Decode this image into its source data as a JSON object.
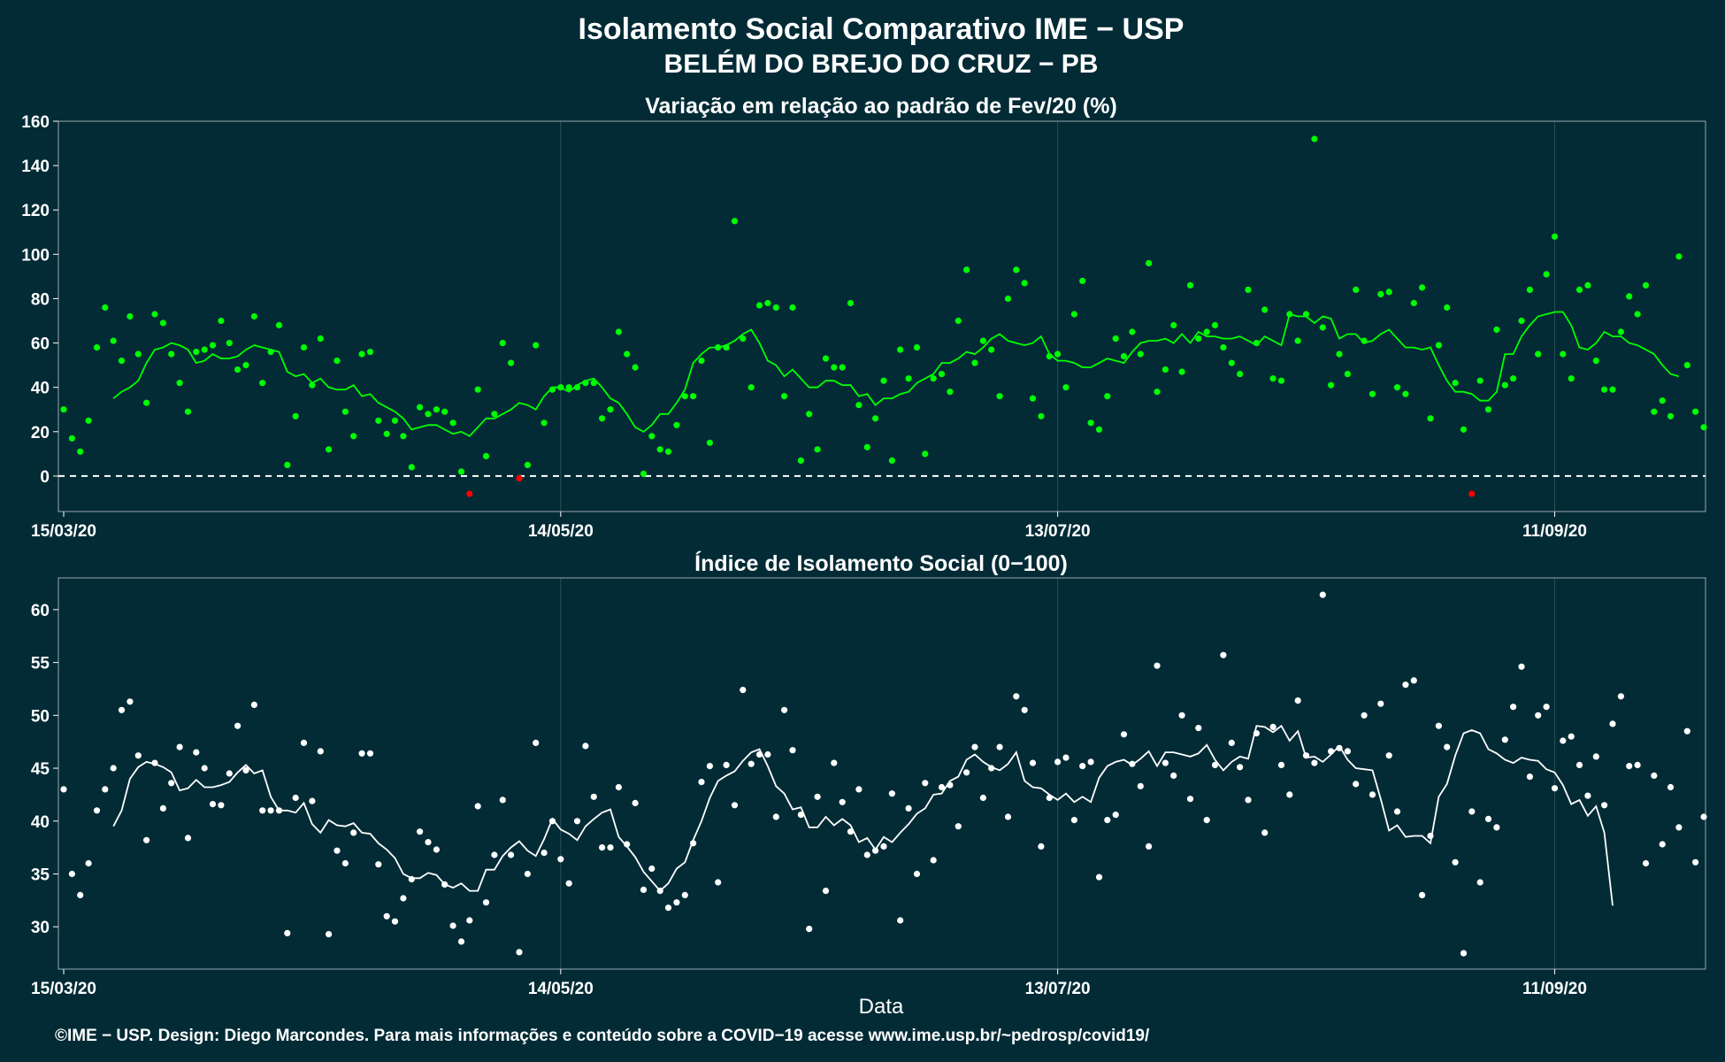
{
  "header": {
    "title": "Isolamento Social Comparativo IME − USP",
    "subtitle": "BELÉM DO BREJO DO CRUZ − PB"
  },
  "xlabel": "Data",
  "footer": "©IME − USP. Design: Diego Marcondes. Para mais informações e conteúdo sobre a COVID−19 acesse www.ime.usp.br/~pedrosp/covid19/",
  "colors": {
    "background": "#022b36",
    "points_positive": "#00ff00",
    "points_negative": "#ff0000",
    "line_top": "#00ff00",
    "line_bottom": "#ffffff",
    "points_bottom": "#ffffff",
    "grid": "#2b4f58"
  },
  "chart_data": [
    {
      "type": "scatter",
      "title": "Variação em relação ao padrão de Fev/20 (%)",
      "x_start": "15/03/20",
      "x_tick_labels": [
        "15/03/20",
        "14/05/20",
        "13/07/20",
        "11/09/20"
      ],
      "x_ticks_day_index": [
        0,
        60,
        120,
        180
      ],
      "ylim": [
        -16,
        160
      ],
      "y_ticks": [
        0,
        20,
        40,
        60,
        80,
        100,
        120,
        140,
        160
      ],
      "reference_line": 0,
      "grid": true,
      "series": [
        {
          "values": [
            30,
            17,
            11,
            25,
            58,
            76,
            61,
            52,
            72,
            55,
            33,
            73,
            69,
            55,
            42,
            29,
            56,
            57,
            59,
            70,
            60,
            48,
            50,
            72,
            42,
            56,
            68,
            5,
            27,
            58,
            41,
            62,
            12,
            52,
            29,
            18,
            55,
            56,
            25,
            19,
            25,
            18,
            4,
            31,
            28,
            30,
            29,
            24,
            2,
            -8,
            39,
            9,
            28,
            60,
            51,
            -1,
            5,
            59,
            24,
            39,
            40,
            40,
            40,
            42,
            42,
            26,
            30,
            65,
            55,
            49,
            1,
            18,
            12,
            11,
            23,
            36,
            36,
            52,
            15,
            58,
            58,
            115,
            62,
            40,
            77,
            78,
            76,
            36,
            76,
            7,
            28,
            12,
            53,
            49,
            49,
            78,
            32,
            13,
            26,
            43,
            7,
            57,
            44,
            58,
            10,
            44,
            46,
            38,
            70,
            93,
            51,
            61,
            57,
            36,
            80,
            93,
            87,
            35,
            27,
            54,
            55,
            40,
            73,
            88,
            24,
            21,
            36,
            62,
            54,
            65,
            55,
            96,
            38,
            48,
            68,
            47,
            86,
            62,
            65,
            68,
            58,
            51,
            46,
            84,
            60,
            75,
            44,
            43,
            73,
            61,
            73,
            152,
            67,
            41,
            55,
            46,
            84,
            61,
            37,
            82,
            83,
            40,
            37,
            78,
            85,
            26,
            59,
            76,
            42,
            21,
            -8,
            43,
            30,
            66,
            41,
            44,
            70,
            84,
            55,
            91,
            108,
            55,
            44,
            84,
            86,
            52,
            39,
            39,
            65,
            81,
            73,
            86,
            29,
            34,
            27,
            99,
            50,
            29,
            22
          ],
          "moving_average": [
            null,
            null,
            null,
            null,
            null,
            null,
            35,
            38,
            40,
            43,
            51,
            57,
            58,
            60,
            59,
            57,
            51,
            52,
            55,
            53,
            53,
            54,
            57,
            59,
            58,
            57,
            56,
            47,
            45,
            46,
            42,
            44,
            40,
            39,
            39,
            41,
            36,
            37,
            33,
            31,
            29,
            26,
            21,
            22,
            23,
            23,
            21,
            19,
            20,
            18,
            22,
            26,
            26,
            28,
            30,
            33,
            32,
            30,
            36,
            40,
            40,
            38,
            41,
            43,
            44,
            40,
            35,
            33,
            28,
            22,
            20,
            23,
            28,
            28,
            33,
            39,
            51,
            55,
            58,
            58,
            59,
            61,
            64,
            66,
            60,
            52,
            50,
            45,
            48,
            44,
            40,
            40,
            43,
            43,
            41,
            41,
            36,
            37,
            32,
            35,
            35,
            37,
            38,
            42,
            44,
            46,
            51,
            51,
            53,
            56,
            55,
            58,
            62,
            64,
            61,
            60,
            59,
            60,
            63,
            55,
            52,
            52,
            51,
            49,
            49,
            51,
            53,
            52,
            51,
            56,
            60,
            61,
            61,
            62,
            60,
            64,
            60,
            65,
            63,
            63,
            62,
            62,
            63,
            61,
            59,
            63,
            61,
            59,
            73,
            72,
            72,
            69,
            72,
            71,
            62,
            64,
            64,
            60,
            61,
            64,
            66,
            62,
            58,
            58,
            57,
            58,
            50,
            43,
            38,
            38,
            37,
            34,
            34,
            38,
            55,
            55,
            63,
            68,
            72,
            73,
            74,
            74,
            68,
            58,
            57,
            60,
            65,
            63,
            63,
            60,
            59,
            57,
            55,
            50,
            46,
            45
          ]
        }
      ]
    },
    {
      "type": "scatter",
      "title": "Índice de Isolamento Social (0−100)",
      "x_start": "15/03/20",
      "x_tick_labels": [
        "15/03/20",
        "14/05/20",
        "13/07/20",
        "11/09/20"
      ],
      "x_ticks_day_index": [
        0,
        60,
        120,
        180
      ],
      "ylim": [
        26,
        63
      ],
      "y_ticks": [
        30,
        35,
        40,
        45,
        50,
        55,
        60
      ],
      "grid": true,
      "series": [
        {
          "values": [
            43,
            35,
            33,
            36,
            41,
            43,
            45,
            50.5,
            51.3,
            46.2,
            38.2,
            45.5,
            41.2,
            43.6,
            47,
            38.4,
            46.5,
            45,
            41.6,
            41.5,
            44.5,
            49,
            44.8,
            51,
            41,
            41,
            41,
            29.4,
            42.2,
            47.4,
            41.9,
            46.6,
            29.3,
            37.2,
            36,
            38.9,
            46.4,
            46.4,
            35.9,
            31,
            30.5,
            32.7,
            34.5,
            39,
            38,
            37.3,
            34,
            30.1,
            28.6,
            30.6,
            41.4,
            32.3,
            36.8,
            42,
            36.8,
            27.6,
            35,
            47.4,
            37,
            40,
            36.4,
            34.1,
            40,
            47.1,
            42.3,
            37.5,
            37.5,
            43.2,
            37.8,
            41.7,
            33.5,
            35.5,
            33.4,
            31.8,
            32.3,
            33,
            37.9,
            43.7,
            45.2,
            34.2,
            45.3,
            41.5,
            52.4,
            45.4,
            46.3,
            46.3,
            40.4,
            50.5,
            46.7,
            40.6,
            29.8,
            42.3,
            33.4,
            45.5,
            41.8,
            39,
            43,
            36.8,
            37.2,
            37.6,
            42.6,
            30.6,
            41.2,
            35,
            43.6,
            36.3,
            43.2,
            43.4,
            39.5,
            44.6,
            47,
            42.2,
            45,
            47,
            40.4,
            51.8,
            50.5,
            45.5,
            37.6,
            42.2,
            45.6,
            46,
            40.1,
            45.2,
            45.6,
            34.7,
            40.1,
            40.6,
            48.2,
            45.4,
            43.3,
            37.6,
            54.7,
            45.5,
            44.3,
            50,
            42.1,
            48.8,
            40.1,
            45.3,
            55.7,
            47.4,
            45.1,
            42,
            48.3,
            38.9,
            48.9,
            45.3,
            42.5,
            51.4,
            46.2,
            45.5,
            61.4,
            46.6,
            46.9,
            46.6,
            43.5,
            50,
            42.5,
            51.1,
            46.2,
            40.9,
            52.9,
            53.3,
            33,
            38.6,
            49,
            47,
            36.1,
            27.5,
            40.9,
            34.2,
            40.2,
            39.4,
            47.7,
            50.8,
            54.6,
            44.2,
            50,
            50.8,
            43.1,
            47.6,
            48,
            45.3,
            42.4,
            46.1,
            41.5,
            49.2,
            51.8,
            45.2,
            45.3,
            36,
            44.3,
            37.8,
            43.2,
            39.4,
            48.5,
            36.1,
            40.4
          ],
          "moving_average": [
            null,
            null,
            null,
            null,
            null,
            null,
            39.5,
            41,
            44,
            45.1,
            45.6,
            45.4,
            45.1,
            44.6,
            42.9,
            43.1,
            43.9,
            43.2,
            43.2,
            43.4,
            43.7,
            44.6,
            45.3,
            44.5,
            44.8,
            42.3,
            41,
            41,
            40.8,
            41.7,
            39.7,
            38.9,
            40.1,
            39.6,
            39.5,
            39.8,
            38.9,
            38.8,
            37.9,
            37.3,
            36.5,
            35,
            34.6,
            34.6,
            35.1,
            34.9,
            34,
            33.7,
            34.1,
            33.4,
            33.4,
            35.4,
            35.4,
            36.7,
            37.5,
            38.1,
            37.2,
            36.7,
            38.3,
            40.2,
            39.2,
            38.8,
            38.2,
            39.5,
            40.2,
            40.8,
            41.1,
            38.5,
            37.6,
            36.6,
            35.2,
            34.3,
            33.4,
            34.1,
            35.5,
            36.1,
            38.2,
            40,
            42.2,
            43.8,
            44.3,
            44.7,
            45.7,
            46.5,
            46.8,
            45.2,
            43.3,
            42.6,
            41.1,
            41.3,
            39.4,
            39.4,
            40.4,
            39.6,
            40.2,
            39.6,
            38,
            38.4,
            37.3,
            38.5,
            38,
            38.9,
            39.7,
            40.7,
            41.2,
            42.5,
            42.6,
            43.8,
            44.2,
            45.8,
            46.3,
            45.6,
            45.1,
            44.8,
            45.4,
            46.5,
            43.8,
            43.2,
            43.1,
            42.5,
            42,
            42.6,
            41.8,
            42.3,
            41.8,
            44.1,
            45.2,
            45.6,
            45.8,
            45.3,
            45.9,
            46.6,
            45.2,
            46.5,
            46.5,
            46.3,
            46.1,
            46.4,
            47.2,
            45.8,
            44.8,
            45.6,
            46.1,
            45.9,
            49,
            48.9,
            48.4,
            49,
            47.6,
            48.5,
            46,
            46.1,
            45.6,
            46.3,
            47.1,
            45.8,
            45,
            44.9,
            44.8,
            42.1,
            39.1,
            39.6,
            38.5,
            38.6,
            38.6,
            37.9,
            42.3,
            43.5,
            46.2,
            48.3,
            48.6,
            48.3,
            46.8,
            46.4,
            45.8,
            45.5,
            46,
            45.8,
            45.7,
            44.9,
            44.6,
            43.4,
            41.6,
            42,
            40.5,
            41.4,
            38.9,
            32
          ]
        }
      ]
    }
  ]
}
